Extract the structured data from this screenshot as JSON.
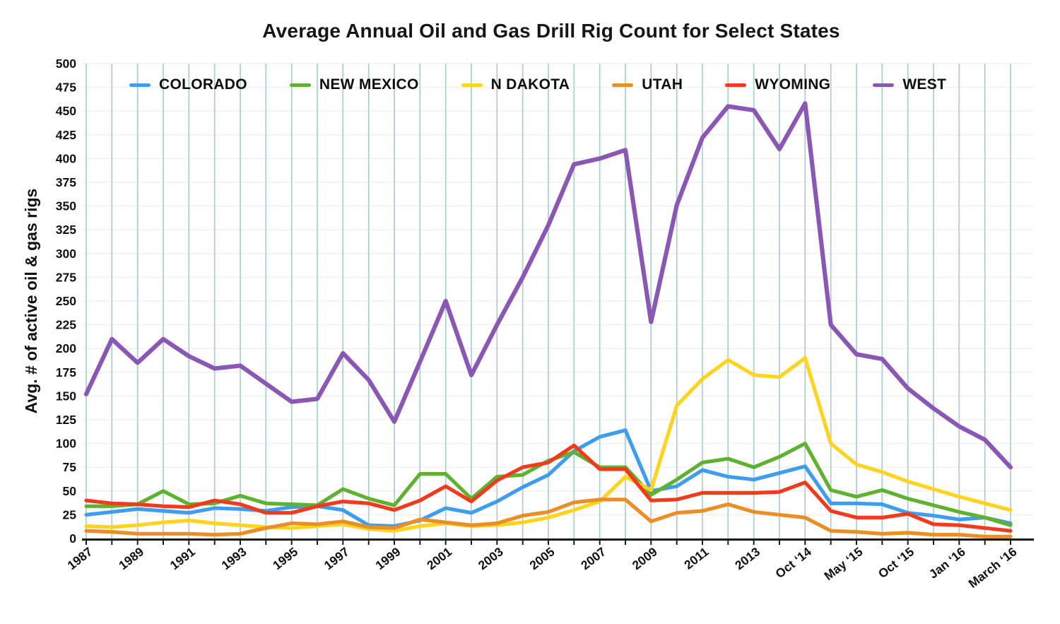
{
  "title": "Average Annual Oil and Gas Drill Rig Count for Select States",
  "y_axis": {
    "title": "Avg. # of active oil & gas rigs",
    "ticks": [
      0,
      25,
      50,
      75,
      100,
      125,
      150,
      175,
      200,
      225,
      250,
      275,
      300,
      325,
      350,
      375,
      400,
      425,
      450,
      475,
      500
    ]
  },
  "colors": {
    "background": "#ffffff",
    "vertical_gridline": "#a7cfcd",
    "horizontal_gridline": "#f5ecee",
    "axis": "#1a1a1a",
    "text": "#111111"
  },
  "chart_data": {
    "type": "line",
    "title": "Average Annual Oil and Gas Drill Rig Count for Select States",
    "xlabel": "",
    "ylabel": "Avg. # of active oil & gas rigs",
    "ylim": [
      0,
      500
    ],
    "y_tick_step": 25,
    "grid": "vertical teal lines at every category; faint horizontal lines every 25",
    "legend_position": "top",
    "categories": [
      "1987",
      "",
      "1989",
      "",
      "1991",
      "",
      "1993",
      "",
      "1995",
      "",
      "1997",
      "",
      "1999",
      "",
      "2001",
      "",
      "2003",
      "",
      "2005",
      "",
      "2007",
      "",
      "2009",
      "",
      "2011",
      "",
      "2013",
      "",
      "Oct '14",
      "",
      "May '15",
      "",
      "Oct '15",
      "",
      "Jan '16",
      "",
      "March '16"
    ],
    "series": [
      {
        "name": "COLORADO",
        "color": "#3e9dee",
        "values": [
          25,
          28,
          31,
          29,
          27,
          32,
          31,
          29,
          33,
          34,
          30,
          14,
          13,
          19,
          32,
          27,
          39,
          54,
          67,
          92,
          107,
          114,
          50,
          55,
          72,
          65,
          62,
          69,
          76,
          37,
          37,
          36,
          27,
          24,
          20,
          22,
          16
        ]
      },
      {
        "name": "NEW MEXICO",
        "color": "#5eb230",
        "values": [
          34,
          34,
          36,
          50,
          36,
          37,
          45,
          37,
          36,
          35,
          52,
          42,
          35,
          68,
          68,
          42,
          65,
          67,
          82,
          91,
          75,
          75,
          46,
          62,
          80,
          84,
          75,
          86,
          100,
          51,
          44,
          51,
          42,
          35,
          28,
          22,
          14
        ]
      },
      {
        "name": "N DAKOTA",
        "color": "#ffd41e",
        "values": [
          13,
          12,
          14,
          17,
          19,
          16,
          14,
          12,
          11,
          13,
          15,
          10,
          8,
          13,
          16,
          13,
          14,
          17,
          22,
          30,
          39,
          65,
          51,
          140,
          168,
          188,
          172,
          170,
          190,
          100,
          78,
          70,
          60,
          52,
          44,
          37,
          30
        ]
      },
      {
        "name": "UTAH",
        "color": "#ea8e26",
        "values": [
          8,
          7,
          5,
          5,
          5,
          4,
          5,
          11,
          16,
          15,
          18,
          12,
          11,
          20,
          17,
          14,
          16,
          24,
          28,
          38,
          41,
          41,
          18,
          27,
          29,
          36,
          28,
          25,
          22,
          8,
          7,
          5,
          6,
          4,
          4,
          2,
          2
        ]
      },
      {
        "name": "WYOMING",
        "color": "#f23a1c",
        "values": [
          40,
          37,
          36,
          34,
          33,
          40,
          36,
          27,
          27,
          34,
          39,
          37,
          30,
          40,
          55,
          39,
          61,
          75,
          80,
          98,
          73,
          73,
          40,
          41,
          48,
          48,
          48,
          49,
          59,
          29,
          22,
          22,
          26,
          15,
          14,
          11,
          8
        ]
      },
      {
        "name": "WEST",
        "color": "#8a58b4",
        "values": [
          152,
          210,
          185,
          210,
          192,
          179,
          182,
          163,
          144,
          147,
          195,
          167,
          123,
          186,
          250,
          172,
          225,
          275,
          330,
          394,
          400,
          409,
          228,
          351,
          422,
          455,
          451,
          410,
          458,
          225,
          194,
          189,
          158,
          137,
          118,
          104,
          75
        ]
      }
    ]
  }
}
